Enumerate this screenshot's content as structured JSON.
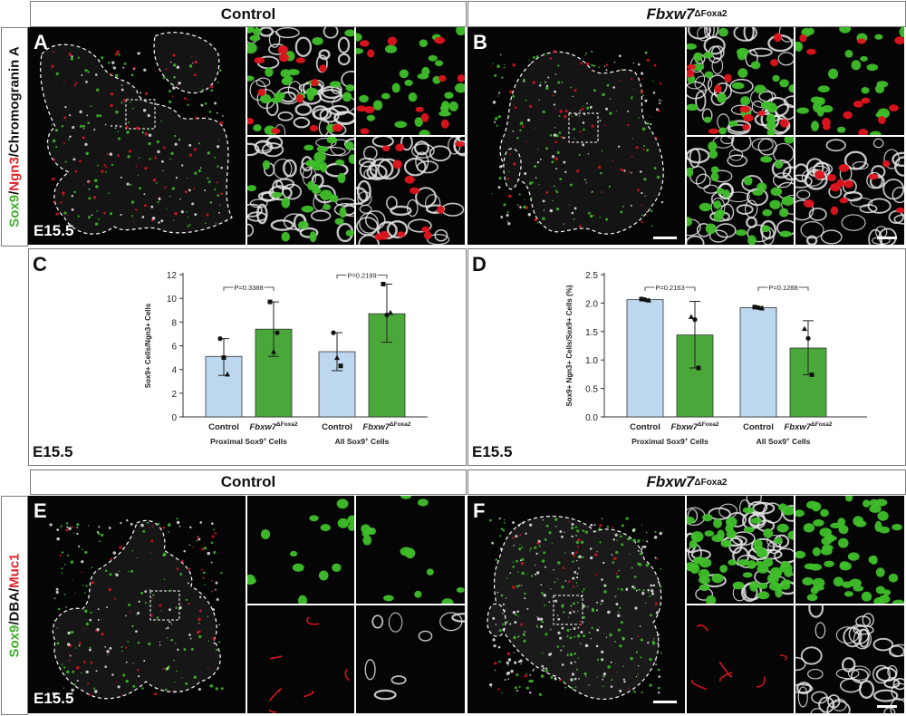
{
  "headers": {
    "top_left": "Control",
    "top_right_gene": "Fbxw7",
    "top_right_sup": "ΔFoxa2",
    "bottom_left": "Control",
    "bottom_right_gene": "Fbxw7",
    "bottom_right_sup": "ΔFoxa2"
  },
  "side_labels": {
    "top": [
      {
        "text": "Sox9",
        "color": "#3fae2a"
      },
      {
        "text": "/",
        "color": "#111111"
      },
      {
        "text": "Ngn3",
        "color": "#d8232a"
      },
      {
        "text": "/Chromogranin A",
        "color": "#111111"
      }
    ],
    "bottom": [
      {
        "text": "Sox9",
        "color": "#3fae2a"
      },
      {
        "text": "/DBA/",
        "color": "#111111"
      },
      {
        "text": "Muc1",
        "color": "#d8232a"
      }
    ]
  },
  "panels": {
    "A": "A",
    "B": "B",
    "C": "C",
    "D": "D",
    "E": "E",
    "F": "F"
  },
  "stage": "E15.5",
  "colors": {
    "control_bar": "#bcd7ee",
    "mutant_bar": "#4aa83a",
    "sox9_green": "#3fbf2a",
    "ngn3_red": "#e0141e",
    "border": "#7a7a7a"
  },
  "chart_data": [
    {
      "panel": "C",
      "type": "bar",
      "ylabel": "Sox9+ Cells/Ngn3+ Cells",
      "ylim": [
        0,
        12
      ],
      "yticks": [
        0,
        2,
        4,
        6,
        8,
        10,
        12
      ],
      "groups": [
        {
          "label": "Proximal Sox9+ Cells",
          "bars": [
            {
              "category": "Control",
              "value": 5.1,
              "err_low": 3.5,
              "err_high": 6.6,
              "color": "control"
            },
            {
              "category": "Fbxw7ΔFoxa2",
              "value": 7.4,
              "err_low": 5.1,
              "err_high": 9.7,
              "color": "mutant"
            }
          ],
          "p_value": "P=0.3388"
        },
        {
          "label": "All Sox9+ Cells",
          "bars": [
            {
              "category": "Control",
              "value": 5.5,
              "err_low": 3.9,
              "err_high": 7.1,
              "color": "control"
            },
            {
              "category": "Fbxw7ΔFoxa2",
              "value": 8.7,
              "err_low": 6.3,
              "err_high": 11.2,
              "color": "mutant"
            }
          ],
          "p_value": "P=0.2199"
        }
      ],
      "points": [
        [
          {
            "v": 6.6,
            "shape": "circle"
          },
          {
            "v": 5.0,
            "shape": "square"
          },
          {
            "v": 3.6,
            "shape": "triangle"
          }
        ],
        [
          {
            "v": 9.7,
            "shape": "square"
          },
          {
            "v": 5.5,
            "shape": "triangle"
          },
          {
            "v": 7.1,
            "shape": "circle"
          }
        ],
        [
          {
            "v": 7.1,
            "shape": "circle"
          },
          {
            "v": 5.0,
            "shape": "triangle"
          },
          {
            "v": 4.3,
            "shape": "square"
          }
        ],
        [
          {
            "v": 11.2,
            "shape": "square"
          },
          {
            "v": 8.6,
            "shape": "circle"
          },
          {
            "v": 8.8,
            "shape": "triangle"
          }
        ]
      ]
    },
    {
      "panel": "D",
      "type": "bar",
      "ylabel": "Sox9+ Ngn3+ Cells/Sox9+ Cells (%)",
      "ylim": [
        0,
        2.5
      ],
      "yticks": [
        0.0,
        0.5,
        1.0,
        1.5,
        2.0,
        2.5
      ],
      "ytick_labels": [
        "0.0",
        "0.5",
        "1.0",
        "1.5",
        "2.0",
        "2.5"
      ],
      "groups": [
        {
          "label": "Proximal Sox9+ Cells",
          "bars": [
            {
              "category": "Control",
              "value": 2.06,
              "err_low": 2.05,
              "err_high": 2.07,
              "color": "control"
            },
            {
              "category": "Fbxw7ΔFoxa2",
              "value": 1.44,
              "err_low": 0.86,
              "err_high": 2.03,
              "color": "mutant"
            }
          ],
          "p_value": "P=0.2163"
        },
        {
          "label": "All Sox9+ Cells",
          "bars": [
            {
              "category": "Control",
              "value": 1.92,
              "err_low": 1.9,
              "err_high": 1.94,
              "color": "control"
            },
            {
              "category": "Fbxw7ΔFoxa2",
              "value": 1.21,
              "err_low": 0.74,
              "err_high": 1.69,
              "color": "mutant"
            }
          ],
          "p_value": "P=0.1288"
        }
      ],
      "points": [
        [
          {
            "v": 2.07,
            "shape": "square"
          },
          {
            "v": 2.06,
            "shape": "circle"
          },
          {
            "v": 2.05,
            "shape": "triangle"
          }
        ],
        [
          {
            "v": 1.76,
            "shape": "triangle"
          },
          {
            "v": 1.71,
            "shape": "circle"
          },
          {
            "v": 0.86,
            "shape": "square"
          }
        ],
        [
          {
            "v": 1.93,
            "shape": "square"
          },
          {
            "v": 1.92,
            "shape": "circle"
          },
          {
            "v": 1.91,
            "shape": "triangle"
          }
        ],
        [
          {
            "v": 1.55,
            "shape": "triangle"
          },
          {
            "v": 1.38,
            "shape": "circle"
          },
          {
            "v": 0.74,
            "shape": "square"
          }
        ]
      ]
    }
  ],
  "chart_text": {
    "control": "Control",
    "mutant_gene": "Fbxw7",
    "mutant_sup": "ΔFoxa2",
    "group1": "Proximal Sox9",
    "group1_tail": " Cells",
    "group2": "All Sox9",
    "group2_tail": " Cells",
    "sup_plus": "+"
  }
}
